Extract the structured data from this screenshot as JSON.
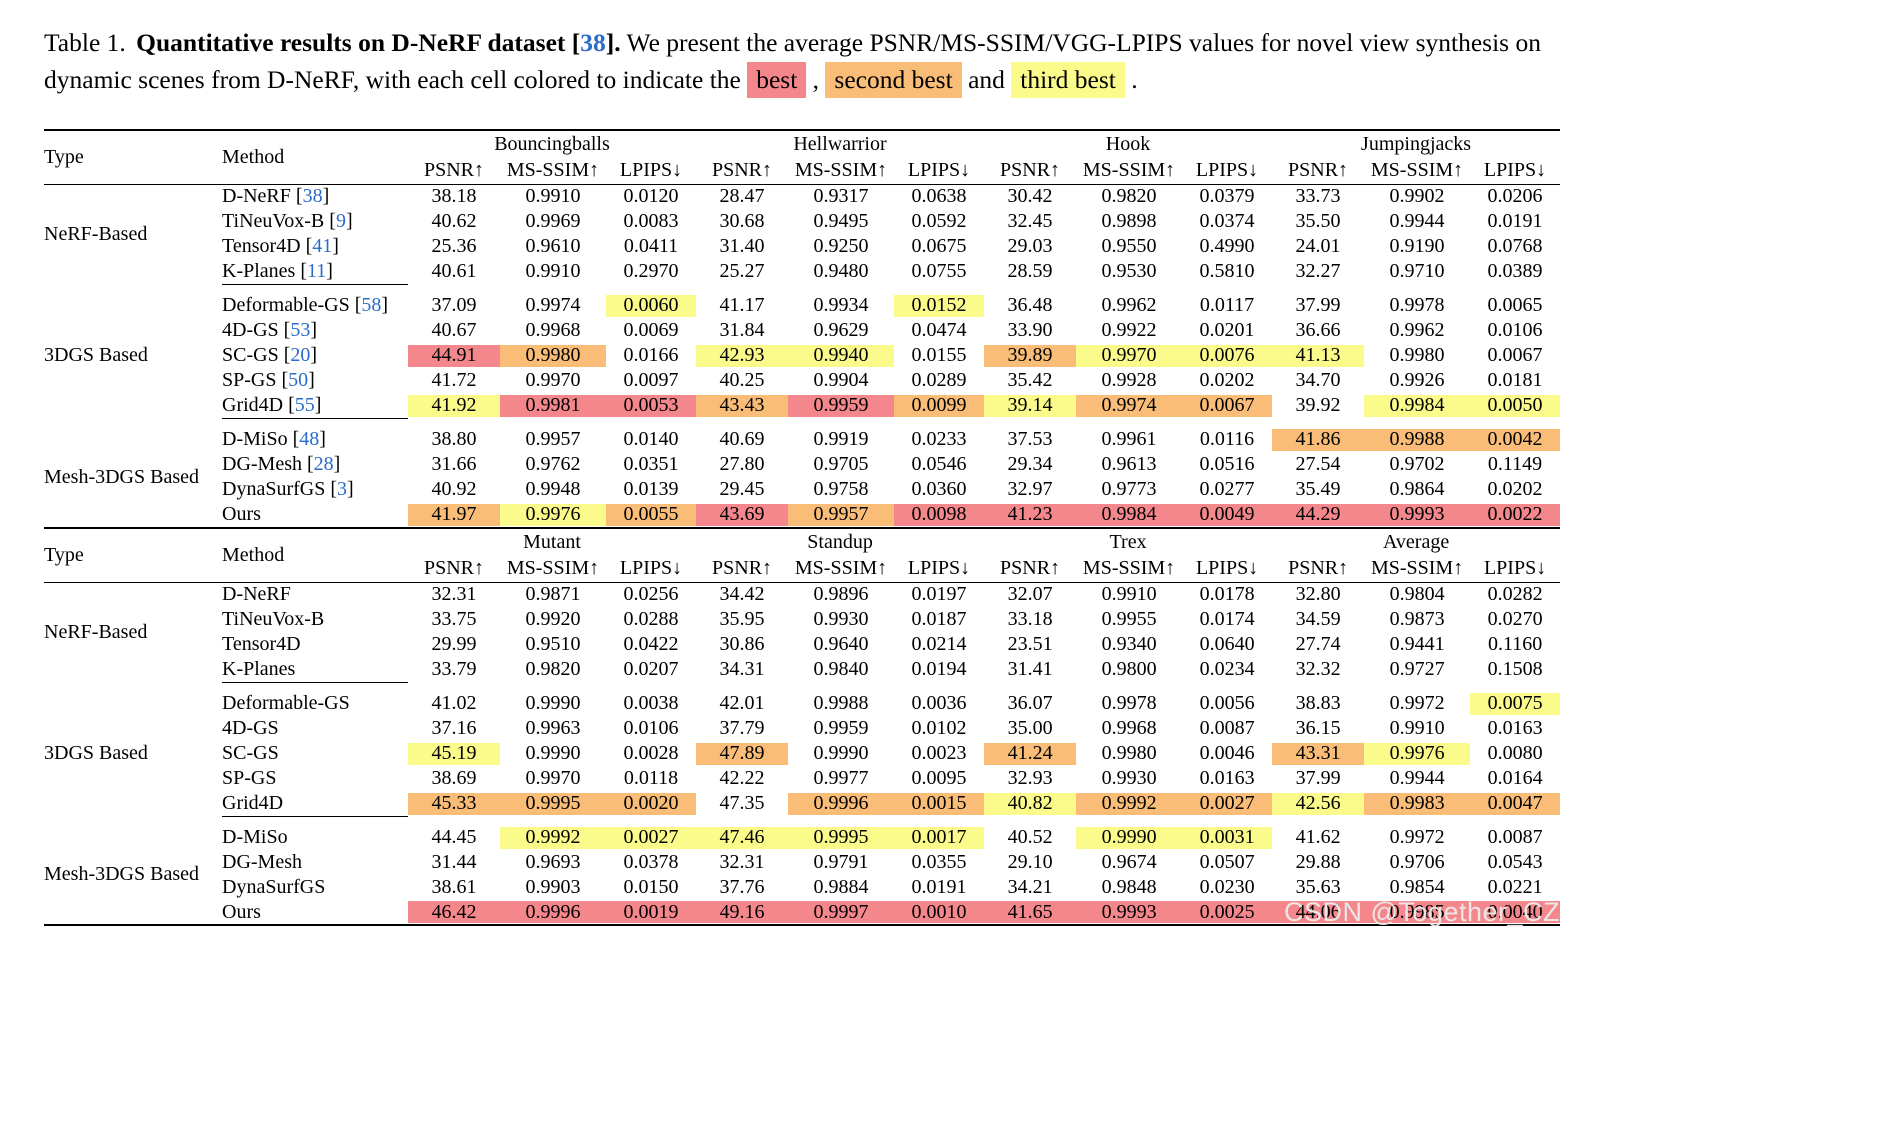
{
  "caption": {
    "label": "Table 1.",
    "title": "Quantitative results on D-NeRF dataset",
    "title_cite": "38",
    "title_period": ".",
    "body": "We present the average PSNR/MS-SSIM/VGG-LPIPS values for novel view synthesis on dynamic scenes from D-NeRF, with each cell colored to indicate the",
    "best": "best",
    "sep1": ",",
    "second": "second best",
    "sep2": "and",
    "third": "third best",
    "sep3": "."
  },
  "colors": {
    "best": "#F4878C",
    "second": "#F9BD78",
    "third": "#FBFB8C",
    "link": "#2A6BCB"
  },
  "watermark": "CSDN @Together_CZ",
  "tables": [
    {
      "col1": "Type",
      "col2": "Method",
      "scenes": [
        "Bouncingballs",
        "Hellwarrior",
        "Hook",
        "Jumpingjacks"
      ],
      "metrics": [
        "PSNR↑",
        "MS-SSIM↑",
        "LPIPS↓"
      ],
      "groups": [
        {
          "type": "NeRF-Based",
          "rows": [
            {
              "method": "D-NeRF",
              "cite": "38",
              "values": [
                "38.18",
                "0.9910",
                "0.0120",
                "28.47",
                "0.9317",
                "0.0638",
                "30.42",
                "0.9820",
                "0.0379",
                "33.73",
                "0.9902",
                "0.0206"
              ]
            },
            {
              "method": "TiNeuVox-B",
              "cite": "9",
              "values": [
                "40.62",
                "0.9969",
                "0.0083",
                "30.68",
                "0.9495",
                "0.0592",
                "32.45",
                "0.9898",
                "0.0374",
                "35.50",
                "0.9944",
                "0.0191"
              ]
            },
            {
              "method": "Tensor4D",
              "cite": "41",
              "values": [
                "25.36",
                "0.9610",
                "0.0411",
                "31.40",
                "0.9250",
                "0.0675",
                "29.03",
                "0.9550",
                "0.4990",
                "24.01",
                "0.9190",
                "0.0768"
              ]
            },
            {
              "method": "K-Planes",
              "cite": "11",
              "values": [
                "40.61",
                "0.9910",
                "0.2970",
                "25.27",
                "0.9480",
                "0.0755",
                "28.59",
                "0.9530",
                "0.5810",
                "32.27",
                "0.9710",
                "0.0389"
              ]
            }
          ]
        },
        {
          "type": "3DGS Based",
          "rows": [
            {
              "method": "Deformable-GS",
              "cite": "58",
              "values": [
                "37.09",
                "0.9974",
                "0.0060",
                "41.17",
                "0.9934",
                "0.0152",
                "36.48",
                "0.9962",
                "0.0117",
                "37.99",
                "0.9978",
                "0.0065"
              ],
              "marks": [
                0,
                0,
                3,
                0,
                0,
                3,
                0,
                0,
                0,
                0,
                0,
                0
              ]
            },
            {
              "method": "4D-GS",
              "cite": "53",
              "values": [
                "40.67",
                "0.9968",
                "0.0069",
                "31.84",
                "0.9629",
                "0.0474",
                "33.90",
                "0.9922",
                "0.0201",
                "36.66",
                "0.9962",
                "0.0106"
              ]
            },
            {
              "method": "SC-GS",
              "cite": "20",
              "values": [
                "44.91",
                "0.9980",
                "0.0166",
                "42.93",
                "0.9940",
                "0.0155",
                "39.89",
                "0.9970",
                "0.0076",
                "41.13",
                "0.9980",
                "0.0067"
              ],
              "marks": [
                1,
                2,
                0,
                3,
                3,
                0,
                2,
                3,
                3,
                3,
                0,
                0
              ]
            },
            {
              "method": "SP-GS",
              "cite": "50",
              "values": [
                "41.72",
                "0.9970",
                "0.0097",
                "40.25",
                "0.9904",
                "0.0289",
                "35.42",
                "0.9928",
                "0.0202",
                "34.70",
                "0.9926",
                "0.0181"
              ]
            },
            {
              "method": "Grid4D",
              "cite": "55",
              "values": [
                "41.92",
                "0.9981",
                "0.0053",
                "43.43",
                "0.9959",
                "0.0099",
                "39.14",
                "0.9974",
                "0.0067",
                "39.92",
                "0.9984",
                "0.0050"
              ],
              "marks": [
                3,
                1,
                1,
                2,
                1,
                2,
                3,
                2,
                2,
                0,
                3,
                3
              ]
            }
          ]
        },
        {
          "type": "Mesh-3DGS Based",
          "rows": [
            {
              "method": "D-MiSo",
              "cite": "48",
              "values": [
                "38.80",
                "0.9957",
                "0.0140",
                "40.69",
                "0.9919",
                "0.0233",
                "37.53",
                "0.9961",
                "0.0116",
                "41.86",
                "0.9988",
                "0.0042"
              ],
              "marks": [
                0,
                0,
                0,
                0,
                0,
                0,
                0,
                0,
                0,
                2,
                2,
                2
              ]
            },
            {
              "method": "DG-Mesh",
              "cite": "28",
              "values": [
                "31.66",
                "0.9762",
                "0.0351",
                "27.80",
                "0.9705",
                "0.0546",
                "29.34",
                "0.9613",
                "0.0516",
                "27.54",
                "0.9702",
                "0.1149"
              ]
            },
            {
              "method": "DynaSurfGS",
              "cite": "3",
              "values": [
                "40.92",
                "0.9948",
                "0.0139",
                "29.45",
                "0.9758",
                "0.0360",
                "32.97",
                "0.9773",
                "0.0277",
                "35.49",
                "0.9864",
                "0.0202"
              ]
            },
            {
              "method": "Ours",
              "values": [
                "41.97",
                "0.9976",
                "0.0055",
                "43.69",
                "0.9957",
                "0.0098",
                "41.23",
                "0.9984",
                "0.0049",
                "44.29",
                "0.9993",
                "0.0022"
              ],
              "marks": [
                2,
                3,
                2,
                1,
                2,
                1,
                1,
                1,
                1,
                1,
                1,
                1
              ]
            }
          ]
        }
      ]
    },
    {
      "col1": "Type",
      "col2": "Method",
      "scenes": [
        "Mutant",
        "Standup",
        "Trex",
        "Average"
      ],
      "metrics": [
        "PSNR↑",
        "MS-SSIM↑",
        "LPIPS↓"
      ],
      "groups": [
        {
          "type": "NeRF-Based",
          "rows": [
            {
              "method": "D-NeRF",
              "values": [
                "32.31",
                "0.9871",
                "0.0256",
                "34.42",
                "0.9896",
                "0.0197",
                "32.07",
                "0.9910",
                "0.0178",
                "32.80",
                "0.9804",
                "0.0282"
              ]
            },
            {
              "method": "TiNeuVox-B",
              "values": [
                "33.75",
                "0.9920",
                "0.0288",
                "35.95",
                "0.9930",
                "0.0187",
                "33.18",
                "0.9955",
                "0.0174",
                "34.59",
                "0.9873",
                "0.0270"
              ]
            },
            {
              "method": "Tensor4D",
              "values": [
                "29.99",
                "0.9510",
                "0.0422",
                "30.86",
                "0.9640",
                "0.0214",
                "23.51",
                "0.9340",
                "0.0640",
                "27.74",
                "0.9441",
                "0.1160"
              ]
            },
            {
              "method": "K-Planes",
              "values": [
                "33.79",
                "0.9820",
                "0.0207",
                "34.31",
                "0.9840",
                "0.0194",
                "31.41",
                "0.9800",
                "0.0234",
                "32.32",
                "0.9727",
                "0.1508"
              ]
            }
          ]
        },
        {
          "type": "3DGS Based",
          "rows": [
            {
              "method": "Deformable-GS",
              "values": [
                "41.02",
                "0.9990",
                "0.0038",
                "42.01",
                "0.9988",
                "0.0036",
                "36.07",
                "0.9978",
                "0.0056",
                "38.83",
                "0.9972",
                "0.0075"
              ],
              "marks": [
                0,
                0,
                0,
                0,
                0,
                0,
                0,
                0,
                0,
                0,
                0,
                3
              ]
            },
            {
              "method": "4D-GS",
              "values": [
                "37.16",
                "0.9963",
                "0.0106",
                "37.79",
                "0.9959",
                "0.0102",
                "35.00",
                "0.9968",
                "0.0087",
                "36.15",
                "0.9910",
                "0.0163"
              ]
            },
            {
              "method": "SC-GS",
              "values": [
                "45.19",
                "0.9990",
                "0.0028",
                "47.89",
                "0.9990",
                "0.0023",
                "41.24",
                "0.9980",
                "0.0046",
                "43.31",
                "0.9976",
                "0.0080"
              ],
              "marks": [
                3,
                0,
                0,
                2,
                0,
                0,
                2,
                0,
                0,
                2,
                3,
                0
              ]
            },
            {
              "method": "SP-GS",
              "values": [
                "38.69",
                "0.9970",
                "0.0118",
                "42.22",
                "0.9977",
                "0.0095",
                "32.93",
                "0.9930",
                "0.0163",
                "37.99",
                "0.9944",
                "0.0164"
              ]
            },
            {
              "method": "Grid4D",
              "values": [
                "45.33",
                "0.9995",
                "0.0020",
                "47.35",
                "0.9996",
                "0.0015",
                "40.82",
                "0.9992",
                "0.0027",
                "42.56",
                "0.9983",
                "0.0047"
              ],
              "marks": [
                2,
                2,
                2,
                0,
                2,
                2,
                3,
                2,
                2,
                3,
                2,
                2
              ]
            }
          ]
        },
        {
          "type": "Mesh-3DGS Based",
          "rows": [
            {
              "method": "D-MiSo",
              "values": [
                "44.45",
                "0.9992",
                "0.0027",
                "47.46",
                "0.9995",
                "0.0017",
                "40.52",
                "0.9990",
                "0.0031",
                "41.62",
                "0.9972",
                "0.0087"
              ],
              "marks": [
                0,
                3,
                3,
                3,
                3,
                3,
                0,
                3,
                3,
                0,
                0,
                0
              ]
            },
            {
              "method": "DG-Mesh",
              "values": [
                "31.44",
                "0.9693",
                "0.0378",
                "32.31",
                "0.9791",
                "0.0355",
                "29.10",
                "0.9674",
                "0.0507",
                "29.88",
                "0.9706",
                "0.0543"
              ]
            },
            {
              "method": "DynaSurfGS",
              "values": [
                "38.61",
                "0.9903",
                "0.0150",
                "37.76",
                "0.9884",
                "0.0191",
                "34.21",
                "0.9848",
                "0.0230",
                "35.63",
                "0.9854",
                "0.0221"
              ]
            },
            {
              "method": "Ours",
              "values": [
                "46.42",
                "0.9996",
                "0.0019",
                "49.16",
                "0.9997",
                "0.0010",
                "41.65",
                "0.9993",
                "0.0025",
                "44.06",
                "0.9985",
                "0.0040"
              ],
              "marks": [
                1,
                1,
                1,
                1,
                1,
                1,
                1,
                1,
                1,
                1,
                1,
                1
              ]
            }
          ]
        }
      ]
    }
  ]
}
